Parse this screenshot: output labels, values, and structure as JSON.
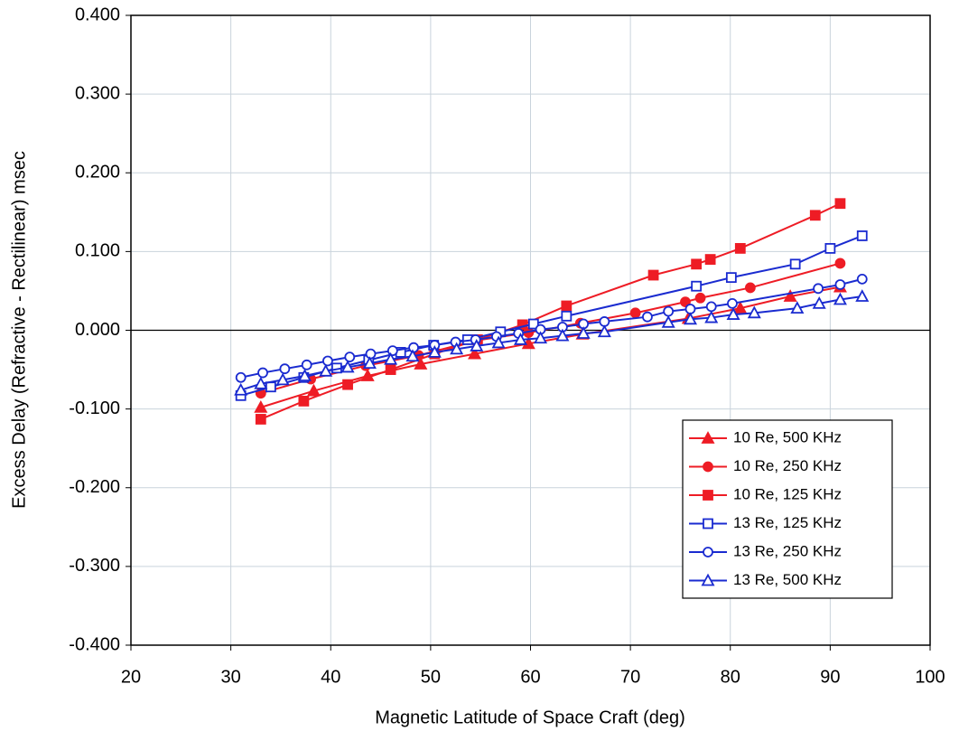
{
  "chart_data": {
    "type": "line",
    "x_label": "Magnetic Latitude of Space Craft (deg)",
    "y_label": "Excess Delay (Refractive - Rectilinear) msec",
    "xlim": [
      20,
      100
    ],
    "xticks": [
      20,
      30,
      40,
      50,
      60,
      70,
      80,
      90,
      100
    ],
    "ylim": [
      -0.4,
      0.4
    ],
    "yticks": [
      {
        "value": -0.4,
        "label": "-0.400"
      },
      {
        "value": -0.3,
        "label": "-0.300"
      },
      {
        "value": -0.2,
        "label": "-0.200"
      },
      {
        "value": -0.1,
        "label": "-0.100"
      },
      {
        "value": 0,
        "label": "0.000"
      },
      {
        "value": 0.1,
        "label": "0.100"
      },
      {
        "value": 0.2,
        "label": "0.200"
      },
      {
        "value": 0.3,
        "label": "0.300"
      },
      {
        "value": 0.4,
        "label": "0.400"
      }
    ],
    "grid": true,
    "legend": "lower right",
    "series": [
      {
        "name": "10 Re, 500 KHz",
        "color": "#ee1c25",
        "marker": "triangle",
        "filled": true,
        "x": [
          33,
          38.3,
          43.7,
          49.0,
          54.4,
          59.8,
          65.2,
          75.8,
          81.0,
          86.0,
          91.0
        ],
        "values": [
          -0.098,
          -0.077,
          -0.058,
          -0.043,
          -0.03,
          -0.017,
          -0.005,
          0.015,
          0.028,
          0.043,
          0.055
        ]
      },
      {
        "name": "10 Re, 250 KHz",
        "color": "#ee1c25",
        "marker": "circle",
        "filled": true,
        "x": [
          33,
          38,
          43.5,
          48.8,
          54.5,
          59.8,
          65,
          70.5,
          75.5,
          77,
          82,
          91
        ],
        "values": [
          -0.08,
          -0.062,
          -0.045,
          -0.032,
          -0.013,
          -0.003,
          0.009,
          0.022,
          0.036,
          0.041,
          0.054,
          0.085
        ]
      },
      {
        "name": "10 Re, 125 KHz",
        "color": "#ee1c25",
        "marker": "square",
        "filled": true,
        "x": [
          33,
          37.3,
          41.7,
          46,
          50.4,
          54.7,
          59.2,
          63.6,
          72.3,
          76.6,
          78,
          81,
          88.5,
          91
        ],
        "values": [
          -0.113,
          -0.09,
          -0.069,
          -0.05,
          -0.03,
          -0.012,
          0.007,
          0.031,
          0.07,
          0.084,
          0.09,
          0.104,
          0.146,
          0.161
        ]
      },
      {
        "name": "13 Re, 125 KHz",
        "color": "#1a2bd0",
        "marker": "square",
        "filled": false,
        "x": [
          31,
          34,
          37.3,
          40.6,
          43.8,
          47,
          50.3,
          53.7,
          57,
          60.3,
          63.6,
          76.6,
          80.1,
          86.5,
          90,
          93.2
        ],
        "values": [
          -0.083,
          -0.072,
          -0.06,
          -0.048,
          -0.038,
          -0.028,
          -0.019,
          -0.012,
          -0.002,
          0.008,
          0.018,
          0.056,
          0.067,
          0.084,
          0.104,
          0.12
        ]
      },
      {
        "name": "13 Re, 250 KHz",
        "color": "#1a2bd0",
        "marker": "circle",
        "filled": false,
        "x": [
          31,
          33.2,
          35.4,
          37.6,
          39.7,
          41.9,
          44,
          46.2,
          48.3,
          50.4,
          52.5,
          54.5,
          56.6,
          58.8,
          61,
          63.2,
          65.3,
          67.4,
          71.7,
          73.8,
          76,
          78.1,
          80.2,
          88.8,
          91,
          93.2
        ],
        "values": [
          -0.06,
          -0.054,
          -0.049,
          -0.044,
          -0.039,
          -0.034,
          -0.03,
          -0.026,
          -0.022,
          -0.019,
          -0.015,
          -0.012,
          -0.008,
          -0.004,
          0.001,
          0.004,
          0.008,
          0.011,
          0.017,
          0.024,
          0.027,
          0.03,
          0.034,
          0.053,
          0.058,
          0.065
        ]
      },
      {
        "name": "13 Re, 500 KHz",
        "color": "#1a2bd0",
        "marker": "triangle",
        "filled": false,
        "x": [
          31,
          33,
          35.2,
          37.4,
          39.5,
          41.7,
          43.9,
          46,
          48.2,
          50.4,
          52.6,
          54.6,
          56.8,
          59,
          61,
          63.2,
          65.3,
          67.4,
          73.8,
          76,
          78.1,
          80.3,
          82.4,
          86.7,
          88.9,
          91,
          93.2
        ],
        "values": [
          -0.076,
          -0.068,
          -0.063,
          -0.058,
          -0.052,
          -0.047,
          -0.042,
          -0.037,
          -0.033,
          -0.028,
          -0.024,
          -0.02,
          -0.016,
          -0.012,
          -0.01,
          -0.007,
          -0.004,
          -0.002,
          0.01,
          0.014,
          0.016,
          0.02,
          0.022,
          0.028,
          0.034,
          0.039,
          0.043
        ]
      }
    ]
  }
}
